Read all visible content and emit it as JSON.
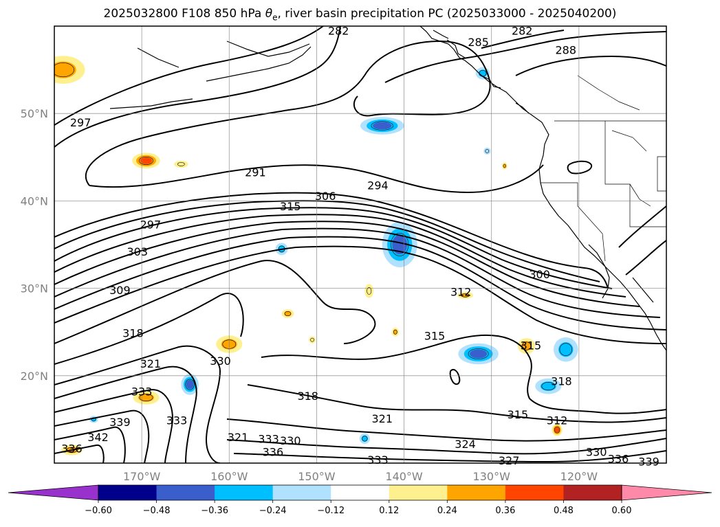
{
  "title_prefix": "2025032800 F108 850 hPa ",
  "title_symbol": "θ",
  "title_subscript": "e",
  "title_suffix": ", river basin precipitation PC (2025033000 - 2025040200)",
  "map": {
    "extent": {
      "lon_min": -180,
      "lon_max": -110,
      "lat_min": 10,
      "lat_max": 60
    },
    "lon_ticks": [
      {
        "lon": -170,
        "label": "170°W"
      },
      {
        "lon": -160,
        "label": "160°W"
      },
      {
        "lon": -150,
        "label": "150°W"
      },
      {
        "lon": -140,
        "label": "140°W"
      },
      {
        "lon": -130,
        "label": "130°W"
      },
      {
        "lon": -120,
        "label": "120°W"
      }
    ],
    "lat_ticks": [
      {
        "lat": 50,
        "label": "50°N"
      },
      {
        "lat": 40,
        "label": "40°N"
      },
      {
        "lat": 30,
        "label": "30°N"
      },
      {
        "lat": 20,
        "label": "20°N"
      }
    ],
    "contour_labels": [
      {
        "text": "282",
        "lon": -147.5,
        "lat": 59.5
      },
      {
        "text": "282",
        "lon": -126.5,
        "lat": 59.5
      },
      {
        "text": "285",
        "lon": -131.5,
        "lat": 58.2
      },
      {
        "text": "288",
        "lon": -121.5,
        "lat": 57.3
      },
      {
        "text": "297",
        "lon": -177,
        "lat": 49
      },
      {
        "text": "291",
        "lon": -157,
        "lat": 43.3
      },
      {
        "text": "294",
        "lon": -143,
        "lat": 41.8
      },
      {
        "text": "306",
        "lon": -149,
        "lat": 40.6
      },
      {
        "text": "315",
        "lon": -153,
        "lat": 39.4
      },
      {
        "text": "297",
        "lon": -169,
        "lat": 37.3
      },
      {
        "text": "303",
        "lon": -170.5,
        "lat": 34.2
      },
      {
        "text": "300",
        "lon": -124.5,
        "lat": 31.6
      },
      {
        "text": "309",
        "lon": -172.5,
        "lat": 29.8
      },
      {
        "text": "312",
        "lon": -133.5,
        "lat": 29.6
      },
      {
        "text": "318",
        "lon": -171,
        "lat": 24.9
      },
      {
        "text": "315",
        "lon": -136.5,
        "lat": 24.6
      },
      {
        "text": "315",
        "lon": -125.5,
        "lat": 23.5
      },
      {
        "text": "321",
        "lon": -169,
        "lat": 21.4
      },
      {
        "text": "330",
        "lon": -161,
        "lat": 21.7
      },
      {
        "text": "318",
        "lon": -122,
        "lat": 19.4
      },
      {
        "text": "333",
        "lon": -170,
        "lat": 18.2
      },
      {
        "text": "318",
        "lon": -151,
        "lat": 17.7
      },
      {
        "text": "339",
        "lon": -172.5,
        "lat": 14.7
      },
      {
        "text": "321",
        "lon": -142.5,
        "lat": 15.1
      },
      {
        "text": "315",
        "lon": -127,
        "lat": 15.6
      },
      {
        "text": "312",
        "lon": -122.5,
        "lat": 14.9
      },
      {
        "text": "333",
        "lon": -166,
        "lat": 14.9
      },
      {
        "text": "342",
        "lon": -175,
        "lat": 13.0
      },
      {
        "text": "336",
        "lon": -178,
        "lat": 11.7
      },
      {
        "text": "321",
        "lon": -159,
        "lat": 13.0
      },
      {
        "text": "333",
        "lon": -155.5,
        "lat": 12.8
      },
      {
        "text": "330",
        "lon": -153,
        "lat": 12.6
      },
      {
        "text": "336",
        "lon": -155,
        "lat": 11.3
      },
      {
        "text": "324",
        "lon": -133,
        "lat": 12.2
      },
      {
        "text": "333",
        "lon": -143,
        "lat": 10.4
      },
      {
        "text": "327",
        "lon": -128,
        "lat": 10.3
      },
      {
        "text": "330",
        "lon": -118,
        "lat": 11.3
      },
      {
        "text": "336",
        "lon": -115.5,
        "lat": 10.5
      },
      {
        "text": "339",
        "lon": -112,
        "lat": 10.2
      }
    ],
    "precip_patches": [
      {
        "lon": -179,
        "lat": 55,
        "rx": 2.5,
        "ry": 1.6,
        "value": 0.3
      },
      {
        "lon": -169.5,
        "lat": 44.6,
        "rx": 1.6,
        "ry": 0.9,
        "value": 0.42
      },
      {
        "lon": -165.5,
        "lat": 44.2,
        "rx": 0.8,
        "ry": 0.4,
        "value": 0.18
      },
      {
        "lon": -142.5,
        "lat": 48.6,
        "rx": 2.5,
        "ry": 1.0,
        "value": -0.4
      },
      {
        "lon": -140.5,
        "lat": 35.0,
        "rx": 2.0,
        "ry": 2.6,
        "value": -0.38
      },
      {
        "lon": -131.5,
        "lat": 22.5,
        "rx": 2.3,
        "ry": 1.2,
        "value": -0.45
      },
      {
        "lon": -123.5,
        "lat": 18.8,
        "rx": 1.5,
        "ry": 0.9,
        "value": -0.3
      },
      {
        "lon": -121.5,
        "lat": 23.0,
        "rx": 1.4,
        "ry": 1.4,
        "value": -0.3
      },
      {
        "lon": -164.5,
        "lat": 19.0,
        "rx": 1.0,
        "ry": 1.2,
        "value": -0.38
      },
      {
        "lon": -154,
        "lat": 34.5,
        "rx": 0.7,
        "ry": 0.7,
        "value": -0.25
      },
      {
        "lon": -131,
        "lat": 54.6,
        "rx": 0.8,
        "ry": 0.7,
        "value": -0.3
      },
      {
        "lon": -160,
        "lat": 23.6,
        "rx": 1.5,
        "ry": 1.0,
        "value": 0.3
      },
      {
        "lon": -126,
        "lat": 23.4,
        "rx": 1.0,
        "ry": 0.9,
        "value": 0.3
      },
      {
        "lon": -169.5,
        "lat": 17.5,
        "rx": 1.5,
        "ry": 0.8,
        "value": 0.25
      },
      {
        "lon": -144,
        "lat": 29.7,
        "rx": 0.5,
        "ry": 0.8,
        "value": 0.2
      },
      {
        "lon": -153.3,
        "lat": 27.1,
        "rx": 0.7,
        "ry": 0.5,
        "value": 0.3
      },
      {
        "lon": -133,
        "lat": 29.2,
        "rx": 0.9,
        "ry": 0.4,
        "value": 0.3
      },
      {
        "lon": -141,
        "lat": 25.0,
        "rx": 0.4,
        "ry": 0.5,
        "value": 0.3
      },
      {
        "lon": -150.5,
        "lat": 24.1,
        "rx": 0.4,
        "ry": 0.4,
        "value": 0.2
      },
      {
        "lon": -128.5,
        "lat": 44.0,
        "rx": 0.3,
        "ry": 0.4,
        "value": 0.3
      },
      {
        "lon": -122.5,
        "lat": 13.8,
        "rx": 0.6,
        "ry": 0.7,
        "value": 0.4
      },
      {
        "lon": -178,
        "lat": 11.5,
        "rx": 1.2,
        "ry": 0.6,
        "value": 0.28
      },
      {
        "lon": -144.5,
        "lat": 12.8,
        "rx": 0.6,
        "ry": 0.6,
        "value": -0.25
      },
      {
        "lon": -130.5,
        "lat": 45.7,
        "rx": 0.4,
        "ry": 0.4,
        "value": -0.2
      },
      {
        "lon": -175.5,
        "lat": 15.0,
        "rx": 0.5,
        "ry": 0.4,
        "value": -0.3
      }
    ]
  },
  "colorbar": {
    "boundaries": [
      -0.6,
      -0.48,
      -0.36,
      -0.24,
      -0.12,
      0.12,
      0.24,
      0.36,
      0.48,
      0.6
    ],
    "tick_labels": [
      "−0.60",
      "−0.48",
      "−0.36",
      "−0.24",
      "−0.12",
      "0.12",
      "0.24",
      "0.36",
      "0.48",
      "0.60"
    ],
    "colors": [
      "#3d1bb5",
      "#00008b",
      "#3a5fcd",
      "#00bfff",
      "#b0e2ff",
      "#ffffff",
      "#fff08f",
      "#ffa500",
      "#ff4500",
      "#b22222"
    ],
    "under_color": "#9932cc",
    "over_color": "#ff89a8"
  }
}
